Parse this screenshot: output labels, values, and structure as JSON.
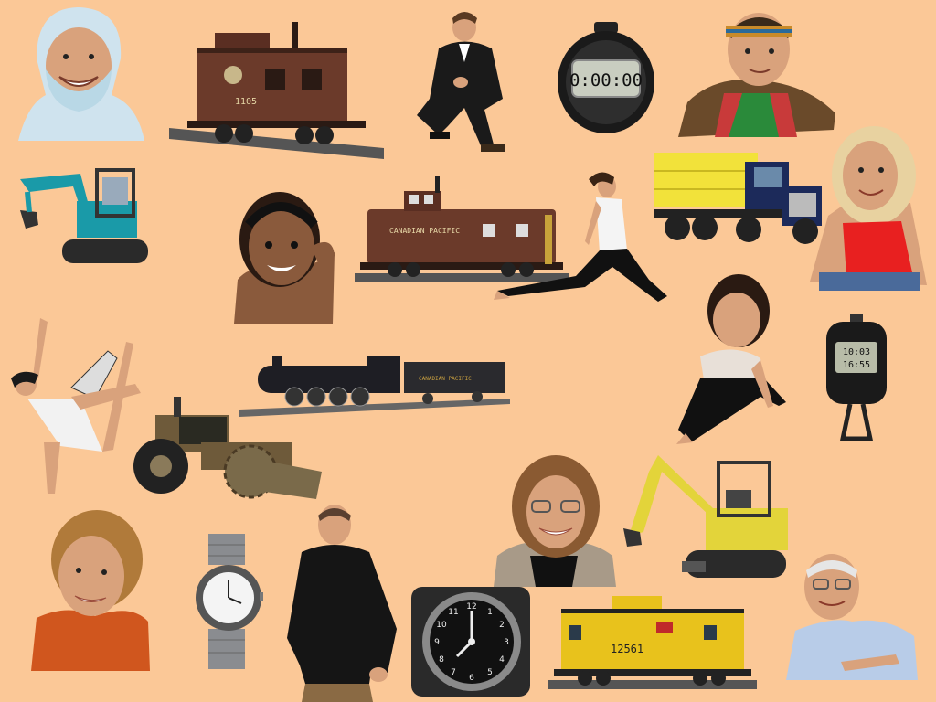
{
  "canvas": {
    "background": "#fbc897"
  },
  "items": [
    {
      "id": "man-hood",
      "category": "person"
    },
    {
      "id": "caboose-brown-1",
      "category": "vehicle",
      "text": "1105"
    },
    {
      "id": "man-suit-crouch",
      "category": "person"
    },
    {
      "id": "stopwatch-round",
      "category": "watch",
      "text": "0:00:00"
    },
    {
      "id": "boy-headband",
      "category": "person"
    },
    {
      "id": "mini-excavator-teal",
      "category": "vehicle"
    },
    {
      "id": "girl-braids",
      "category": "person"
    },
    {
      "id": "caboose-canadian-pacific",
      "category": "vehicle",
      "text": "CANADIAN PACIFIC"
    },
    {
      "id": "woman-stretching",
      "category": "person"
    },
    {
      "id": "truck-yellow-dump",
      "category": "vehicle"
    },
    {
      "id": "girl-blonde",
      "category": "person"
    },
    {
      "id": "woman-dancing",
      "category": "person"
    },
    {
      "id": "steam-locomotive",
      "category": "vehicle"
    },
    {
      "id": "woman-sitting-floor",
      "category": "person"
    },
    {
      "id": "stopwatch-digital",
      "category": "watch"
    },
    {
      "id": "compactor-roller",
      "category": "vehicle"
    },
    {
      "id": "woman-glasses",
      "category": "person"
    },
    {
      "id": "mini-excavator-yellow",
      "category": "vehicle"
    },
    {
      "id": "young-man-smiling",
      "category": "person"
    },
    {
      "id": "wristwatch",
      "category": "watch"
    },
    {
      "id": "man-black-shirt",
      "category": "person"
    },
    {
      "id": "aircraft-clock",
      "category": "watch"
    },
    {
      "id": "caboose-yellow",
      "category": "vehicle",
      "text": "12561"
    },
    {
      "id": "old-man-glasses",
      "category": "person"
    }
  ],
  "colors": {
    "caboose_brown": "#6b3a2a",
    "caboose_yellow": "#e8c21c",
    "excavator_teal": "#1a9aa8",
    "excavator_yellow": "#e3d43a",
    "truck_yellow": "#f2e23a",
    "truck_blue": "#1c2a5a"
  }
}
